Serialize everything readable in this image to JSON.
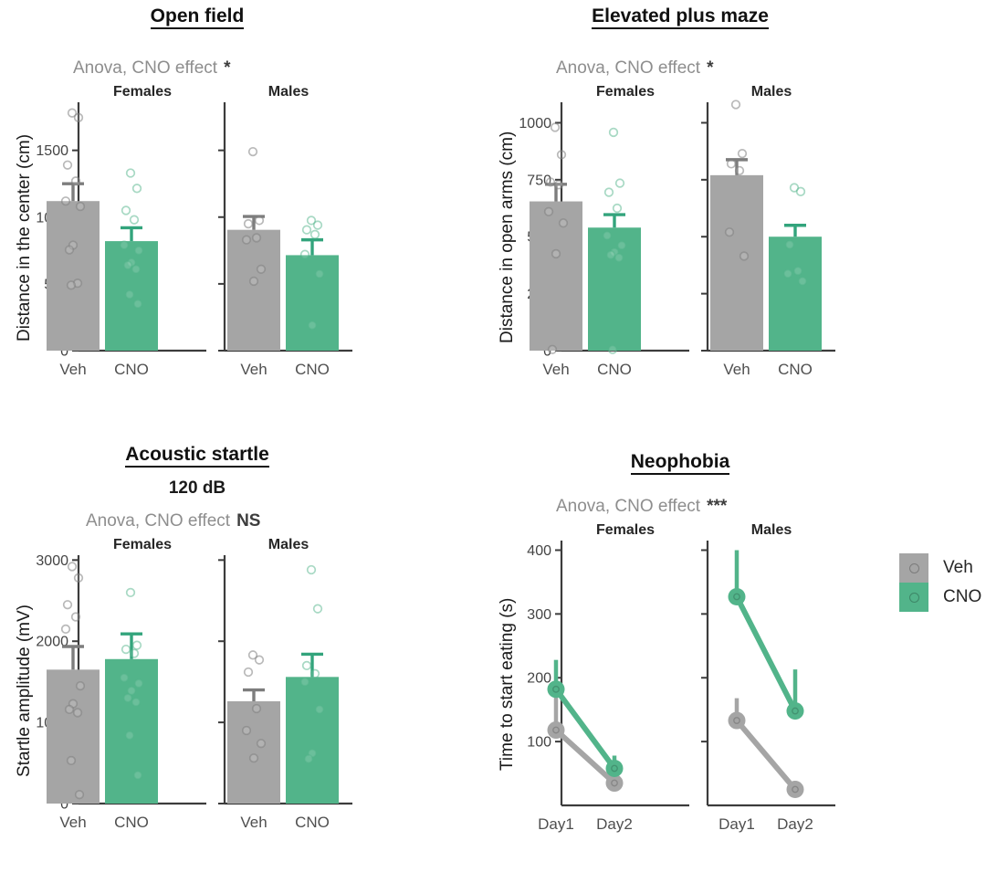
{
  "background": "#ffffff",
  "colors": {
    "veh": "#a5a5a5",
    "cno": "#52b48a",
    "veh_error": "#7d7d7d",
    "cno_error": "#33a47c",
    "axis": "#3c3c3c",
    "tick_label": "#444444",
    "x_label": "#4f4f4f",
    "subtitle_gray": "#8e8e8e"
  },
  "legend": {
    "items": [
      {
        "label": "Veh",
        "color": "#a5a5a5"
      },
      {
        "label": "CNO",
        "color": "#52b48a"
      }
    ]
  },
  "chart_data": [
    {
      "id": "open-field",
      "type": "bar",
      "title": "Open field",
      "subtitle_prefix": "Anova, CNO effect",
      "significance": "*",
      "ylabel": "Distance in the center (cm)",
      "ylim": [
        0,
        1860
      ],
      "yticks": [
        0,
        500,
        1000,
        1500
      ],
      "x_categories": [
        "Veh",
        "CNO"
      ],
      "facets": [
        {
          "label": "Females",
          "groups": [
            {
              "name": "Veh",
              "mean": 1120,
              "sem_top": 1250,
              "points": [
                1780,
                1745,
                1390,
                1270,
                1120,
                1080,
                790,
                755,
                505,
                490
              ]
            },
            {
              "name": "CNO",
              "mean": 820,
              "sem_top": 920,
              "points": [
                1330,
                1215,
                1050,
                980,
                790,
                750,
                660,
                640,
                610,
                420,
                350
              ]
            }
          ]
        },
        {
          "label": "Males",
          "groups": [
            {
              "name": "Veh",
              "mean": 905,
              "sem_top": 1005,
              "points": [
                1490,
                975,
                950,
                845,
                830,
                610,
                520
              ]
            },
            {
              "name": "CNO",
              "mean": 715,
              "sem_top": 830,
              "points": [
                975,
                940,
                905,
                870,
                720,
                575,
                190
              ]
            }
          ]
        }
      ]
    },
    {
      "id": "elevated-plus-maze",
      "type": "bar",
      "title": "Elevated plus maze",
      "subtitle_prefix": "Anova, CNO effect",
      "significance": "*",
      "ylabel": "Distance in open arms (cm)",
      "ylim": [
        0,
        1090
      ],
      "yticks": [
        0,
        250,
        500,
        750,
        1000
      ],
      "x_categories": [
        "Veh",
        "CNO"
      ],
      "facets": [
        {
          "label": "Females",
          "groups": [
            {
              "name": "Veh",
              "mean": 655,
              "sem_top": 730,
              "points": [
                980,
                860,
                740,
                728,
                610,
                560,
                425,
                5
              ]
            },
            {
              "name": "CNO",
              "mean": 540,
              "sem_top": 597,
              "points": [
                958,
                735,
                695,
                625,
                505,
                462,
                432,
                420,
                408,
                5
              ]
            }
          ]
        },
        {
          "label": "Males",
          "groups": [
            {
              "name": "Veh",
              "mean": 770,
              "sem_top": 838,
              "points": [
                1080,
                865,
                820,
                790,
                520,
                415
              ]
            },
            {
              "name": "CNO",
              "mean": 500,
              "sem_top": 550,
              "points": [
                715,
                698,
                465,
                350,
                338,
                305
              ]
            }
          ]
        }
      ]
    },
    {
      "id": "acoustic-startle",
      "type": "bar",
      "title": "Acoustic startle",
      "subtitle2": "120 dB",
      "subtitle_prefix": "Anova, CNO effect",
      "significance": "NS",
      "ylabel": "Startle amplitude (mV)",
      "ylim": [
        0,
        3060
      ],
      "yticks": [
        0,
        1000,
        2000,
        3000
      ],
      "x_categories": [
        "Veh",
        "CNO"
      ],
      "facets": [
        {
          "label": "Females",
          "groups": [
            {
              "name": "Veh",
              "mean": 1650,
              "sem_top": 1935,
              "points": [
                2920,
                2780,
                2450,
                2300,
                2150,
                1450,
                1230,
                1160,
                1120,
                530,
                110
              ]
            },
            {
              "name": "CNO",
              "mean": 1780,
              "sem_top": 2090,
              "points": [
                2600,
                1950,
                1900,
                1850,
                1550,
                1480,
                1390,
                1300,
                1250,
                840,
                350
              ]
            }
          ]
        },
        {
          "label": "Males",
          "groups": [
            {
              "name": "Veh",
              "mean": 1260,
              "sem_top": 1400,
              "points": [
                1830,
                1770,
                1620,
                1170,
                900,
                740,
                560
              ]
            },
            {
              "name": "CNO",
              "mean": 1560,
              "sem_top": 1840,
              "points": [
                2880,
                2400,
                1700,
                1600,
                1500,
                1160,
                620,
                550
              ]
            }
          ]
        }
      ]
    },
    {
      "id": "neophobia",
      "type": "line",
      "title": "Neophobia",
      "subtitle_prefix": "Anova, CNO effect",
      "significance": "***",
      "ylabel": "Time to start eating (s)",
      "ylim": [
        0,
        415
      ],
      "yticks": [
        100,
        200,
        300,
        400
      ],
      "x_categories": [
        "Day1",
        "Day2"
      ],
      "facets": [
        {
          "label": "Females",
          "series": [
            {
              "name": "Veh",
              "values": [
                118,
                35
              ],
              "err_top": [
                170,
                48
              ]
            },
            {
              "name": "CNO",
              "values": [
                182,
                58
              ],
              "err_top": [
                228,
                78
              ]
            }
          ]
        },
        {
          "label": "Males",
          "series": [
            {
              "name": "Veh",
              "values": [
                133,
                25
              ],
              "err_top": [
                168,
                38
              ]
            },
            {
              "name": "CNO",
              "values": [
                327,
                148
              ],
              "err_top": [
                400,
                213
              ]
            }
          ]
        }
      ]
    }
  ]
}
